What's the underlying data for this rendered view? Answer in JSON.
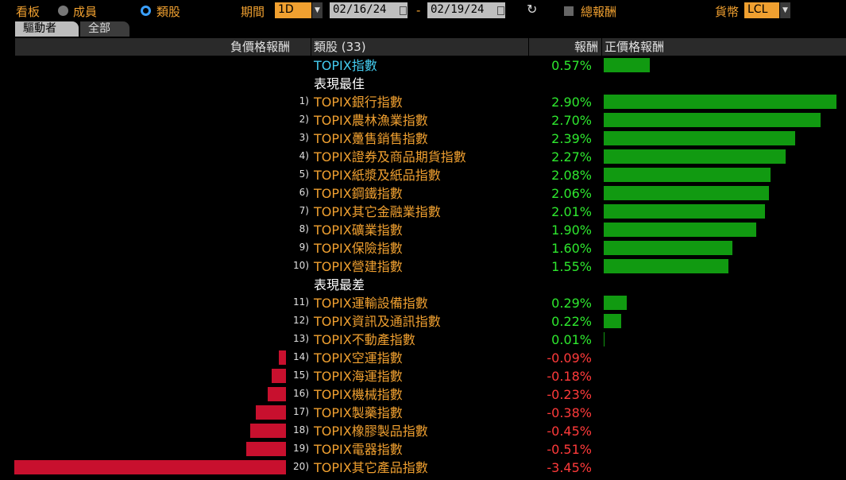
{
  "toolbar": {
    "board_label": "看板",
    "members_label": "成員",
    "sectors_label": "類股",
    "period_label": "期間",
    "period_value": "1D",
    "date_from": "02/16/24",
    "date_sep": "-",
    "date_to": "02/19/24",
    "total_return_label": "總報酬",
    "currency_label": "貨幣",
    "currency_value": "LCL"
  },
  "tabs": [
    {
      "label": "驅動者",
      "active": true
    },
    {
      "label": "全部",
      "active": false
    }
  ],
  "header": {
    "neg_col": "負價格報酬",
    "name_col": "類股 (33)",
    "ret_col": "報酬",
    "pos_col": "正價格報酬"
  },
  "benchmark": {
    "name": "TOPIX指數",
    "value": 0.57,
    "display": "0.57%"
  },
  "best_label": "表現最佳",
  "worst_label": "表現最差",
  "best": [
    {
      "rank": "1)",
      "name": "TOPIX銀行指數",
      "value": 2.9,
      "display": "2.90%"
    },
    {
      "rank": "2)",
      "name": "TOPIX農林漁業指數",
      "value": 2.7,
      "display": "2.70%"
    },
    {
      "rank": "3)",
      "name": "TOPIX躉售銷售指數",
      "value": 2.39,
      "display": "2.39%"
    },
    {
      "rank": "4)",
      "name": "TOPIX證券及商品期貨指數",
      "value": 2.27,
      "display": "2.27%"
    },
    {
      "rank": "5)",
      "name": "TOPIX紙漿及紙品指數",
      "value": 2.08,
      "display": "2.08%"
    },
    {
      "rank": "6)",
      "name": "TOPIX鋼鐵指數",
      "value": 2.06,
      "display": "2.06%"
    },
    {
      "rank": "7)",
      "name": "TOPIX其它金融業指數",
      "value": 2.01,
      "display": "2.01%"
    },
    {
      "rank": "8)",
      "name": "TOPIX礦業指數",
      "value": 1.9,
      "display": "1.90%"
    },
    {
      "rank": "9)",
      "name": "TOPIX保險指數",
      "value": 1.6,
      "display": "1.60%"
    },
    {
      "rank": "10)",
      "name": "TOPIX營建指數",
      "value": 1.55,
      "display": "1.55%"
    }
  ],
  "worst": [
    {
      "rank": "11)",
      "name": "TOPIX運輸設備指數",
      "value": 0.29,
      "display": "0.29%"
    },
    {
      "rank": "12)",
      "name": "TOPIX資訊及通訊指數",
      "value": 0.22,
      "display": "0.22%"
    },
    {
      "rank": "13)",
      "name": "TOPIX不動產指數",
      "value": 0.01,
      "display": "0.01%"
    },
    {
      "rank": "14)",
      "name": "TOPIX空運指數",
      "value": -0.09,
      "display": "-0.09%"
    },
    {
      "rank": "15)",
      "name": "TOPIX海運指數",
      "value": -0.18,
      "display": "-0.18%"
    },
    {
      "rank": "16)",
      "name": "TOPIX機械指數",
      "value": -0.23,
      "display": "-0.23%"
    },
    {
      "rank": "17)",
      "name": "TOPIX製藥指數",
      "value": -0.38,
      "display": "-0.38%"
    },
    {
      "rank": "18)",
      "name": "TOPIX橡膠製品指數",
      "value": -0.45,
      "display": "-0.45%"
    },
    {
      "rank": "19)",
      "name": "TOPIX電器指數",
      "value": -0.51,
      "display": "-0.51%"
    },
    {
      "rank": "20)",
      "name": "TOPIX其它產品指數",
      "value": -3.45,
      "display": "-3.45%"
    }
  ],
  "colors": {
    "positive": "#119a11",
    "negative": "#c8102e",
    "name": "#f0a030",
    "benchmark": "#44ccf0"
  }
}
